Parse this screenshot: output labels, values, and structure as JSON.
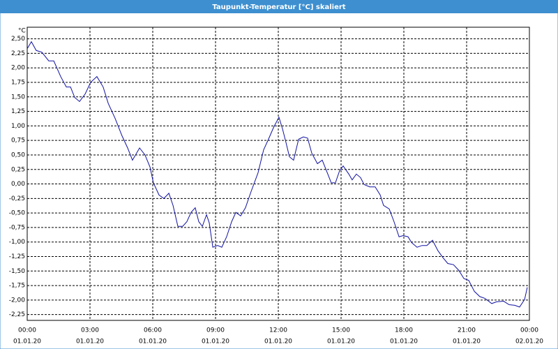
{
  "chart_data": {
    "type": "line",
    "title": "Taupunkt-Temperatur [°C] skaliert",
    "y_label": "°C",
    "color": "#1010a0",
    "grid": true,
    "xlim": [
      0,
      24
    ],
    "ylim": [
      -2.35,
      2.7
    ],
    "xticks": [
      {
        "value": 0,
        "label": "00:00"
      },
      {
        "value": 3,
        "label": "03:00"
      },
      {
        "value": 6,
        "label": "06:00"
      },
      {
        "value": 9,
        "label": "09:00"
      },
      {
        "value": 12,
        "label": "12:00"
      },
      {
        "value": 15,
        "label": "15:00"
      },
      {
        "value": 18,
        "label": "18:00"
      },
      {
        "value": 21,
        "label": "21:00"
      },
      {
        "value": 24,
        "label": "00:00"
      }
    ],
    "xtick_dates": [
      "01.01.20",
      "01.01.20",
      "01.01.20",
      "01.01.20",
      "01.01.20",
      "01.01.20",
      "01.01.20",
      "01.01.20",
      "02.01.20"
    ],
    "yticks": [
      {
        "value": 2.5,
        "label": "2,50"
      },
      {
        "value": 2.25,
        "label": "2,25"
      },
      {
        "value": 2,
        "label": "2,00"
      },
      {
        "value": 1.75,
        "label": "1,75"
      },
      {
        "value": 1.5,
        "label": "1,50"
      },
      {
        "value": 1.25,
        "label": "1,25"
      },
      {
        "value": 1,
        "label": "1,00"
      },
      {
        "value": 0.75,
        "label": "0,75"
      },
      {
        "value": 0.5,
        "label": "0,50"
      },
      {
        "value": 0.25,
        "label": "0,25"
      },
      {
        "value": 0,
        "label": "0,00"
      },
      {
        "value": -0.25,
        "label": "-0,25"
      },
      {
        "value": -0.5,
        "label": "-0,50"
      },
      {
        "value": -0.75,
        "label": "-0,75"
      },
      {
        "value": -1,
        "label": "-1,00"
      },
      {
        "value": -1.25,
        "label": "-1,25"
      },
      {
        "value": -1.5,
        "label": "-1,50"
      },
      {
        "value": -1.75,
        "label": "-1,75"
      },
      {
        "value": -2,
        "label": "-2,00"
      },
      {
        "value": -2.25,
        "label": "-2,25"
      }
    ],
    "x": [
      0,
      0.2,
      0.43,
      0.7,
      1.03,
      1.27,
      1.6,
      1.87,
      2.07,
      2.27,
      2.5,
      2.77,
      3.03,
      3.33,
      3.63,
      3.87,
      4.2,
      4.53,
      4.8,
      5.03,
      5.37,
      5.63,
      5.87,
      6.03,
      6.3,
      6.53,
      6.77,
      6.97,
      7.2,
      7.43,
      7.63,
      7.83,
      8.03,
      8.2,
      8.37,
      8.57,
      8.7,
      8.87,
      9.1,
      9.3,
      9.53,
      9.77,
      9.97,
      10.2,
      10.43,
      10.7,
      11.03,
      11.3,
      11.53,
      11.77,
      12.03,
      12.2,
      12.37,
      12.53,
      12.73,
      12.97,
      13.2,
      13.4,
      13.6,
      13.87,
      14.1,
      14.3,
      14.53,
      14.73,
      14.93,
      15.1,
      15.37,
      15.53,
      15.73,
      15.93,
      16.1,
      16.37,
      16.63,
      16.87,
      17.03,
      17.3,
      17.53,
      17.77,
      17.97,
      18.2,
      18.37,
      18.63,
      18.87,
      19.1,
      19.37,
      19.63,
      19.87,
      20.1,
      20.37,
      20.63,
      20.87,
      21.1,
      21.37,
      21.63,
      21.87,
      22.2,
      22.43,
      22.77,
      23.03,
      23.3,
      23.53,
      23.77,
      23.9
    ],
    "values": [
      2.33,
      2.45,
      2.3,
      2.27,
      2.12,
      2.12,
      1.85,
      1.67,
      1.67,
      1.49,
      1.42,
      1.55,
      1.75,
      1.85,
      1.67,
      1.39,
      1.13,
      0.83,
      0.62,
      0.41,
      0.62,
      0.5,
      0.29,
      0.02,
      -0.19,
      -0.25,
      -0.16,
      -0.37,
      -0.73,
      -0.73,
      -0.65,
      -0.49,
      -0.41,
      -0.65,
      -0.73,
      -0.53,
      -0.67,
      -1.09,
      -1.06,
      -1.09,
      -0.91,
      -0.65,
      -0.49,
      -0.55,
      -0.41,
      -0.13,
      0.19,
      0.59,
      0.77,
      0.97,
      1.15,
      0.95,
      0.71,
      0.47,
      0.41,
      0.77,
      0.81,
      0.79,
      0.53,
      0.35,
      0.41,
      0.23,
      0.02,
      0.02,
      0.23,
      0.31,
      0.17,
      0.07,
      0.17,
      0.11,
      -0.01,
      -0.05,
      -0.05,
      -0.19,
      -0.37,
      -0.43,
      -0.65,
      -0.91,
      -0.89,
      -0.91,
      -1.01,
      -1.09,
      -1.06,
      -1.06,
      -0.97,
      -1.15,
      -1.27,
      -1.37,
      -1.39,
      -1.49,
      -1.63,
      -1.66,
      -1.85,
      -1.94,
      -1.97,
      -2.06,
      -2.03,
      -2.02,
      -2.08,
      -2.09,
      -2.12,
      -1.99,
      -1.78
    ]
  }
}
